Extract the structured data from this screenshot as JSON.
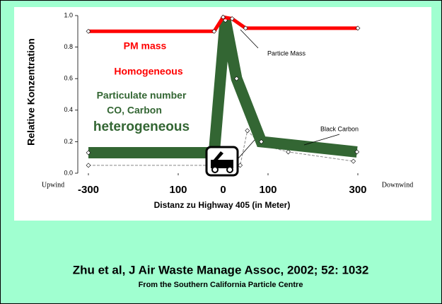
{
  "chart_data": {
    "type": "line",
    "ylabel": "Relative Konzentration",
    "xlabel": "Distanz zu Highway 405 (in Meter)",
    "x_end_labels": [
      "Upwind",
      "Downwind"
    ],
    "annotations": [
      "PM mass",
      "Homogeneous",
      "Particulate number",
      "CO, Carbon",
      "heterogeneous"
    ],
    "xlim": [
      -300,
      300
    ],
    "ylim": [
      0,
      1
    ],
    "xticks": [
      -300,
      {
        "value": -100,
        "label": "100"
      },
      0,
      100,
      300
    ],
    "yticks": [
      {
        "value": 0,
        "label": "0.0"
      },
      0.2,
      0.4,
      0.6,
      0.8,
      {
        "value": 1,
        "label": "1.0"
      }
    ],
    "series": [
      {
        "name": "Particle Mass",
        "color": "#ff0000",
        "width": 5,
        "x": [
          -300,
          -20,
          0,
          20,
          50,
          300
        ],
        "values": [
          0.9,
          0.9,
          0.99,
          0.98,
          0.92,
          0.92
        ]
      },
      {
        "color": "#336633",
        "width": 16,
        "x": [
          -300,
          -20,
          5,
          30,
          85,
          298
        ],
        "values": [
          0.13,
          0.13,
          0.97,
          0.6,
          0.2,
          0.135
        ]
      },
      {
        "name": "Black Carbon",
        "color": "#888888",
        "width": 1,
        "x": [
          -300,
          38,
          54,
          85,
          145,
          290
        ],
        "values": [
          0.05,
          0.05,
          0.27,
          0.18,
          0.135,
          0.076
        ]
      }
    ]
  },
  "footer": {
    "source": "Zhu et al, J Air Waste Manage Assoc, 2002; 52: 1032",
    "credit": "From the Southern California Particle Centre"
  }
}
